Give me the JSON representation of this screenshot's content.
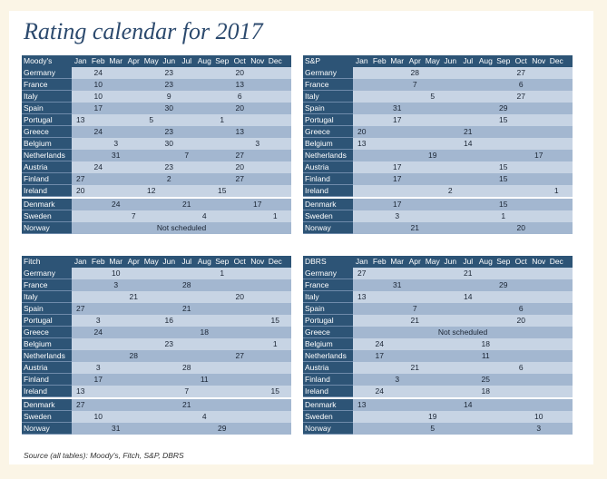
{
  "title": "Rating calendar for 2017",
  "months": [
    "Jan",
    "Feb",
    "Mar",
    "Apr",
    "May",
    "Jun",
    "Jul",
    "Aug",
    "Sep",
    "Oct",
    "Nov",
    "Dec"
  ],
  "tables": [
    {
      "agency": "Moody's",
      "rows": [
        {
          "country": "Germany",
          "cells": [
            "",
            "24",
            "",
            "",
            "",
            "23",
            "",
            "",
            "",
            "20",
            "",
            ""
          ]
        },
        {
          "country": "France",
          "cells": [
            "",
            "10",
            "",
            "",
            "",
            "23",
            "",
            "",
            "",
            "13",
            "",
            ""
          ]
        },
        {
          "country": "Italy",
          "cells": [
            "",
            "10",
            "",
            "",
            "",
            "9",
            "",
            "",
            "",
            "6",
            "",
            ""
          ]
        },
        {
          "country": "Spain",
          "cells": [
            "",
            "17",
            "",
            "",
            "",
            "30",
            "",
            "",
            "",
            "20",
            "",
            ""
          ]
        },
        {
          "country": "Portugal",
          "cells": [
            "13",
            "",
            "",
            "",
            "5",
            "",
            "",
            "",
            "1",
            "",
            "",
            ""
          ]
        },
        {
          "country": "Greece",
          "cells": [
            "",
            "24",
            "",
            "",
            "",
            "23",
            "",
            "",
            "",
            "13",
            "",
            ""
          ]
        },
        {
          "country": "Belgium",
          "cells": [
            "",
            "",
            "3",
            "",
            "",
            "30",
            "",
            "",
            "",
            "",
            "3",
            ""
          ]
        },
        {
          "country": "Netherlands",
          "cells": [
            "",
            "",
            "31",
            "",
            "",
            "",
            "7",
            "",
            "",
            "27",
            "",
            ""
          ]
        },
        {
          "country": "Austria",
          "cells": [
            "",
            "24",
            "",
            "",
            "",
            "23",
            "",
            "",
            "",
            "20",
            "",
            ""
          ]
        },
        {
          "country": "Finland",
          "cells": [
            "27",
            "",
            "",
            "",
            "",
            "2",
            "",
            "",
            "",
            "27",
            "",
            ""
          ]
        },
        {
          "country": "Ireland",
          "cells": [
            "20",
            "",
            "",
            "",
            "12",
            "",
            "",
            "",
            "15",
            "",
            "",
            ""
          ]
        },
        {
          "country": "Denmark",
          "gap": true,
          "cells": [
            "",
            "",
            "24",
            "",
            "",
            "",
            "21",
            "",
            "",
            "",
            "17",
            ""
          ]
        },
        {
          "country": "Sweden",
          "cells": [
            "",
            "",
            "",
            "7",
            "",
            "",
            "",
            "4",
            "",
            "",
            "",
            "1"
          ]
        },
        {
          "country": "Norway",
          "note": "Not scheduled"
        }
      ]
    },
    {
      "agency": "S&P",
      "rows": [
        {
          "country": "Germany",
          "cells": [
            "",
            "",
            "",
            "28",
            "",
            "",
            "",
            "",
            "",
            "27",
            "",
            ""
          ]
        },
        {
          "country": "France",
          "cells": [
            "",
            "",
            "",
            "7",
            "",
            "",
            "",
            "",
            "",
            "6",
            "",
            ""
          ]
        },
        {
          "country": "Italy",
          "cells": [
            "",
            "",
            "",
            "",
            "5",
            "",
            "",
            "",
            "",
            "27",
            "",
            ""
          ]
        },
        {
          "country": "Spain",
          "cells": [
            "",
            "",
            "31",
            "",
            "",
            "",
            "",
            "",
            "29",
            "",
            "",
            ""
          ]
        },
        {
          "country": "Portugal",
          "cells": [
            "",
            "",
            "17",
            "",
            "",
            "",
            "",
            "",
            "15",
            "",
            "",
            ""
          ]
        },
        {
          "country": "Greece",
          "cells": [
            "20",
            "",
            "",
            "",
            "",
            "",
            "21",
            "",
            "",
            "",
            "",
            ""
          ]
        },
        {
          "country": "Belgium",
          "cells": [
            "13",
            "",
            "",
            "",
            "",
            "",
            "14",
            "",
            "",
            "",
            "",
            ""
          ]
        },
        {
          "country": "Netherlands",
          "cells": [
            "",
            "",
            "",
            "",
            "19",
            "",
            "",
            "",
            "",
            "",
            "17",
            ""
          ]
        },
        {
          "country": "Austria",
          "cells": [
            "",
            "",
            "17",
            "",
            "",
            "",
            "",
            "",
            "15",
            "",
            "",
            ""
          ]
        },
        {
          "country": "Finland",
          "cells": [
            "",
            "",
            "17",
            "",
            "",
            "",
            "",
            "",
            "15",
            "",
            "",
            ""
          ]
        },
        {
          "country": "Ireland",
          "cells": [
            "",
            "",
            "",
            "",
            "",
            "2",
            "",
            "",
            "",
            "",
            "",
            "1"
          ]
        },
        {
          "country": "Denmark",
          "gap": true,
          "cells": [
            "",
            "",
            "17",
            "",
            "",
            "",
            "",
            "",
            "15",
            "",
            "",
            ""
          ]
        },
        {
          "country": "Sweden",
          "cells": [
            "",
            "",
            "3",
            "",
            "",
            "",
            "",
            "",
            "1",
            "",
            "",
            ""
          ]
        },
        {
          "country": "Norway",
          "cells": [
            "",
            "",
            "",
            "21",
            "",
            "",
            "",
            "",
            "",
            "20",
            "",
            ""
          ]
        }
      ]
    },
    {
      "agency": "Fitch",
      "rows": [
        {
          "country": "Germany",
          "cells": [
            "",
            "",
            "10",
            "",
            "",
            "",
            "",
            "",
            "1",
            "",
            "",
            ""
          ]
        },
        {
          "country": "France",
          "cells": [
            "",
            "",
            "3",
            "",
            "",
            "",
            "28",
            "",
            "",
            "",
            "",
            ""
          ]
        },
        {
          "country": "Italy",
          "cells": [
            "",
            "",
            "",
            "21",
            "",
            "",
            "",
            "",
            "",
            "20",
            "",
            ""
          ]
        },
        {
          "country": "Spain",
          "cells": [
            "27",
            "",
            "",
            "",
            "",
            "",
            "21",
            "",
            "",
            "",
            "",
            ""
          ]
        },
        {
          "country": "Portugal",
          "cells": [
            "",
            "3",
            "",
            "",
            "",
            "16",
            "",
            "",
            "",
            "",
            "",
            "15"
          ]
        },
        {
          "country": "Greece",
          "cells": [
            "",
            "24",
            "",
            "",
            "",
            "",
            "",
            "18",
            "",
            "",
            "",
            ""
          ]
        },
        {
          "country": "Belgium",
          "cells": [
            "",
            "",
            "",
            "",
            "",
            "23",
            "",
            "",
            "",
            "",
            "",
            "1"
          ]
        },
        {
          "country": "Netherlands",
          "cells": [
            "",
            "",
            "",
            "28",
            "",
            "",
            "",
            "",
            "",
            "27",
            "",
            ""
          ]
        },
        {
          "country": "Austria",
          "cells": [
            "",
            "3",
            "",
            "",
            "",
            "",
            "28",
            "",
            "",
            "",
            "",
            ""
          ]
        },
        {
          "country": "Finland",
          "cells": [
            "",
            "17",
            "",
            "",
            "",
            "",
            "",
            "11",
            "",
            "",
            "",
            ""
          ]
        },
        {
          "country": "Ireland",
          "cells": [
            "13",
            "",
            "",
            "",
            "",
            "",
            "7",
            "",
            "",
            "",
            "",
            "15"
          ]
        },
        {
          "country": "Denmark",
          "gap": true,
          "cells": [
            "27",
            "",
            "",
            "",
            "",
            "",
            "21",
            "",
            "",
            "",
            "",
            ""
          ]
        },
        {
          "country": "Sweden",
          "cells": [
            "",
            "10",
            "",
            "",
            "",
            "",
            "",
            "4",
            "",
            "",
            "",
            ""
          ]
        },
        {
          "country": "Norway",
          "cells": [
            "",
            "",
            "31",
            "",
            "",
            "",
            "",
            "",
            "29",
            "",
            "",
            ""
          ]
        }
      ]
    },
    {
      "agency": "DBRS",
      "rows": [
        {
          "country": "Germany",
          "cells": [
            "27",
            "",
            "",
            "",
            "",
            "",
            "21",
            "",
            "",
            "",
            "",
            ""
          ]
        },
        {
          "country": "France",
          "cells": [
            "",
            "",
            "31",
            "",
            "",
            "",
            "",
            "",
            "29",
            "",
            "",
            ""
          ]
        },
        {
          "country": "Italy",
          "cells": [
            "13",
            "",
            "",
            "",
            "",
            "",
            "14",
            "",
            "",
            "",
            "",
            ""
          ]
        },
        {
          "country": "Spain",
          "cells": [
            "",
            "",
            "",
            "7",
            "",
            "",
            "",
            "",
            "",
            "6",
            "",
            ""
          ]
        },
        {
          "country": "Portugal",
          "cells": [
            "",
            "",
            "",
            "21",
            "",
            "",
            "",
            "",
            "",
            "20",
            "",
            ""
          ]
        },
        {
          "country": "Greece",
          "note": "Not scheduled"
        },
        {
          "country": "Belgium",
          "cells": [
            "",
            "24",
            "",
            "",
            "",
            "",
            "",
            "18",
            "",
            "",
            "",
            ""
          ]
        },
        {
          "country": "Netherlands",
          "cells": [
            "",
            "17",
            "",
            "",
            "",
            "",
            "",
            "11",
            "",
            "",
            "",
            ""
          ]
        },
        {
          "country": "Austria",
          "cells": [
            "",
            "",
            "",
            "21",
            "",
            "",
            "",
            "",
            "",
            "6",
            "",
            ""
          ]
        },
        {
          "country": "Finland",
          "cells": [
            "",
            "",
            "3",
            "",
            "",
            "",
            "",
            "25",
            "",
            "",
            "",
            ""
          ]
        },
        {
          "country": "Ireland",
          "cells": [
            "",
            "24",
            "",
            "",
            "",
            "",
            "",
            "18",
            "",
            "",
            "",
            ""
          ]
        },
        {
          "country": "Denmark",
          "gap": true,
          "cells": [
            "13",
            "",
            "",
            "",
            "",
            "",
            "14",
            "",
            "",
            "",
            "",
            ""
          ]
        },
        {
          "country": "Sweden",
          "cells": [
            "",
            "",
            "",
            "",
            "19",
            "",
            "",
            "",
            "",
            "",
            "10",
            ""
          ]
        },
        {
          "country": "Norway",
          "cells": [
            "",
            "",
            "",
            "",
            "5",
            "",
            "",
            "",
            "",
            "",
            "3",
            ""
          ]
        }
      ]
    }
  ],
  "source": "Source (all tables): Moody's, Fitch, S&P, DBRS"
}
